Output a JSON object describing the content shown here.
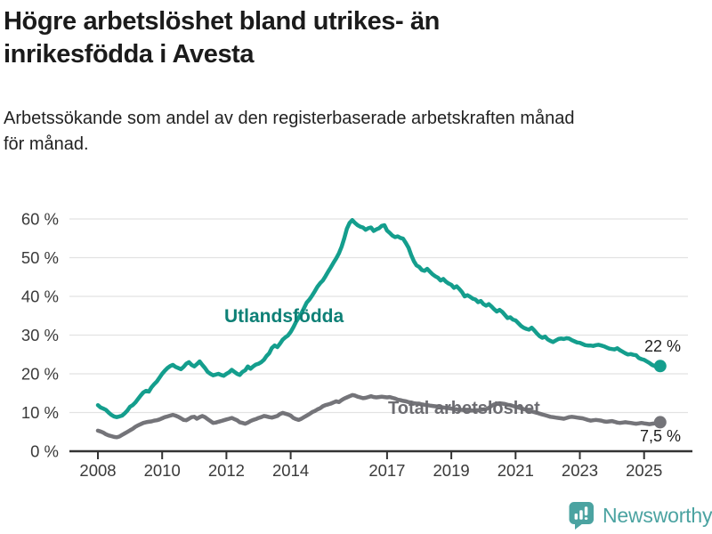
{
  "header": {
    "title_lines": [
      "Högre arbetslöshet bland utrikes- än",
      "inrikesfödda i Avesta"
    ],
    "subtitle_lines": [
      "Arbetssökande som andel av den registerbaserade arbetskraften månad",
      "för månad."
    ]
  },
  "chart_data": {
    "type": "line",
    "title": "Högre arbetslöshet bland utrikes- än inrikesfödda i Avesta",
    "subtitle": "Arbetssökande som andel av den registerbaserade arbetskraften månad för månad.",
    "unit": "%",
    "x_start_year": 2008,
    "x_step_months": 1,
    "x_tick_years": [
      2008,
      2010,
      2012,
      2014,
      2017,
      2019,
      2021,
      2023,
      2025
    ],
    "y_tick_values": [
      0,
      10,
      20,
      30,
      40,
      50,
      60
    ],
    "y_tick_labels": [
      "0 %",
      "10 %",
      "20 %",
      "30 %",
      "40 %",
      "50 %",
      "60 %"
    ],
    "ylim": [
      0,
      60
    ],
    "grid": true,
    "grid_color": "#e2e2e2",
    "axis_color": "#333333",
    "tick_label_color": "#3a3a3a",
    "legend_position": "inline-labels",
    "series": [
      {
        "name": "Utlandsfödda",
        "color": "#149e8d",
        "label_color": "#0e8076",
        "end_label": "22 %",
        "end_value": 22,
        "values": [
          11.9,
          11.3,
          11.0,
          10.7,
          10.0,
          9.4,
          9.0,
          8.8,
          9.0,
          9.2,
          9.8,
          10.5,
          11.5,
          11.9,
          12.6,
          13.5,
          14.4,
          15.2,
          15.6,
          15.4,
          16.5,
          17.3,
          18.0,
          19.0,
          20.0,
          20.8,
          21.5,
          22.0,
          22.3,
          21.8,
          21.5,
          21.2,
          21.8,
          22.6,
          23.0,
          22.3,
          21.9,
          22.5,
          23.2,
          22.3,
          21.5,
          20.5,
          20.0,
          19.6,
          19.8,
          20.0,
          19.7,
          19.5,
          20.0,
          20.4,
          21.0,
          20.5,
          20.0,
          19.7,
          20.5,
          20.9,
          21.9,
          21.3,
          21.9,
          22.4,
          22.6,
          23.0,
          23.6,
          24.6,
          25.3,
          26.7,
          27.3,
          26.9,
          27.8,
          28.8,
          29.4,
          29.9,
          30.8,
          32.0,
          33.4,
          34.5,
          35.6,
          37.0,
          38.4,
          39.2,
          40.2,
          41.3,
          42.5,
          43.4,
          44.1,
          45.2,
          46.4,
          47.5,
          48.7,
          49.8,
          51.1,
          52.8,
          55.0,
          57.5,
          59.0,
          59.7,
          59.0,
          58.4,
          58.0,
          57.8,
          57.2,
          57.6,
          57.8,
          56.9,
          57.3,
          57.6,
          58.2,
          58.4,
          57.0,
          56.4,
          55.7,
          55.3,
          55.5,
          55.1,
          54.9,
          53.8,
          52.6,
          50.7,
          49.1,
          48.0,
          47.6,
          46.8,
          46.6,
          47.1,
          46.4,
          45.7,
          45.2,
          44.8,
          44.1,
          44.5,
          43.8,
          43.3,
          43.0,
          42.2,
          42.6,
          41.9,
          41.1,
          40.0,
          40.3,
          39.9,
          39.4,
          39.2,
          38.5,
          38.8,
          38.0,
          37.6,
          38.0,
          37.4,
          36.7,
          36.1,
          36.5,
          36.0,
          35.2,
          34.4,
          34.6,
          34.0,
          33.8,
          33.1,
          32.4,
          31.9,
          31.6,
          31.4,
          31.9,
          31.2,
          30.4,
          29.7,
          29.3,
          29.6,
          28.9,
          28.5,
          28.2,
          28.6,
          29.0,
          29.1,
          29.0,
          29.2,
          29.1,
          28.7,
          28.4,
          28.1,
          28.0,
          27.7,
          27.4,
          27.3,
          27.3,
          27.2,
          27.4,
          27.5,
          27.3,
          27.1,
          26.8,
          26.5,
          26.4,
          26.3,
          26.6,
          26.1,
          25.7,
          25.3,
          25.0,
          25.1,
          24.9,
          24.8,
          24.1,
          23.8,
          23.6,
          23.2,
          22.8,
          22.3,
          22.0,
          21.7,
          22.0
        ]
      },
      {
        "name": "Total arbetslöshet",
        "color": "#747479",
        "label_color": "#6c6c71",
        "end_label": "7,5 %",
        "end_value": 7.5,
        "values": [
          5.3,
          5.1,
          4.8,
          4.4,
          4.1,
          3.9,
          3.7,
          3.6,
          3.8,
          4.2,
          4.6,
          5.0,
          5.4,
          5.8,
          6.3,
          6.7,
          7.0,
          7.3,
          7.5,
          7.6,
          7.7,
          7.9,
          8.0,
          8.2,
          8.5,
          8.8,
          9.0,
          9.2,
          9.4,
          9.2,
          8.9,
          8.5,
          8.1,
          8.0,
          8.4,
          8.8,
          8.9,
          8.4,
          8.8,
          9.1,
          8.8,
          8.3,
          7.8,
          7.3,
          7.4,
          7.6,
          7.8,
          8.0,
          8.2,
          8.4,
          8.6,
          8.3,
          8.0,
          7.5,
          7.3,
          7.1,
          7.4,
          7.8,
          8.1,
          8.3,
          8.6,
          8.8,
          9.1,
          9.0,
          8.8,
          8.7,
          8.9,
          9.1,
          9.6,
          9.9,
          9.7,
          9.5,
          9.2,
          8.6,
          8.3,
          8.1,
          8.4,
          8.8,
          9.2,
          9.6,
          10.1,
          10.4,
          10.8,
          11.1,
          11.6,
          11.9,
          12.1,
          12.3,
          12.6,
          12.9,
          12.7,
          13.2,
          13.6,
          13.9,
          14.2,
          14.5,
          14.4,
          14.1,
          13.9,
          13.7,
          13.8,
          14.0,
          14.2,
          14.0,
          13.9,
          14.0,
          14.1,
          14.0,
          13.9,
          14.0,
          13.8,
          13.6,
          13.3,
          13.2,
          13.0,
          12.9,
          12.7,
          12.6,
          12.4,
          12.3,
          12.3,
          12.1,
          12.0,
          11.9,
          11.8,
          11.7,
          11.6,
          11.5,
          11.4,
          11.3,
          11.2,
          11.1,
          11.0,
          10.9,
          10.8,
          10.7,
          10.7,
          10.6,
          10.6,
          10.5,
          10.5,
          10.6,
          10.6,
          10.7,
          10.8,
          10.9,
          11.2,
          11.7,
          12.1,
          12.3,
          12.4,
          12.3,
          12.2,
          12.0,
          11.9,
          11.7,
          11.5,
          11.3,
          11.1,
          10.9,
          10.7,
          10.5,
          10.3,
          10.1,
          9.9,
          9.7,
          9.5,
          9.3,
          9.1,
          8.9,
          8.8,
          8.7,
          8.6,
          8.5,
          8.4,
          8.6,
          8.8,
          8.9,
          8.8,
          8.7,
          8.6,
          8.5,
          8.3,
          8.1,
          7.9,
          8.0,
          8.1,
          8.0,
          7.9,
          7.7,
          7.6,
          7.7,
          7.8,
          7.6,
          7.4,
          7.3,
          7.4,
          7.5,
          7.4,
          7.3,
          7.2,
          7.1,
          7.2,
          7.3,
          7.2,
          7.1,
          7.0,
          7.1,
          7.2,
          7.3,
          7.5
        ]
      }
    ]
  },
  "branding": {
    "logo_text": "Newsworthy",
    "logo_color": "#4ba3a1"
  }
}
